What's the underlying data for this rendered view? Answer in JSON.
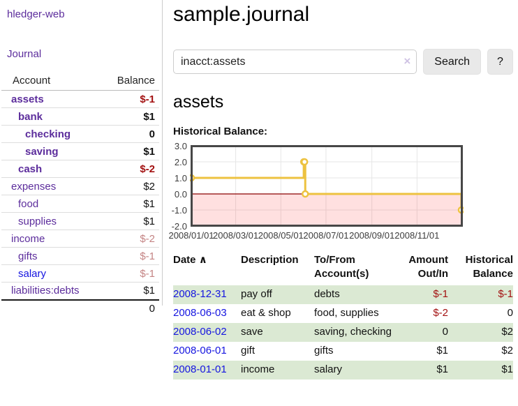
{
  "app": {
    "title": "hledger-web"
  },
  "sidebar": {
    "nav_journal": "Journal",
    "accounts_table": {
      "header_account": "Account",
      "header_balance": "Balance",
      "rows": [
        {
          "name": "assets",
          "depth": 1,
          "balance": "$-1",
          "current": true,
          "balance_tone": "neg-strong",
          "link_style": "purple"
        },
        {
          "name": "bank",
          "depth": 2,
          "balance": "$1",
          "current": true,
          "balance_tone": "pos",
          "link_style": "purple"
        },
        {
          "name": "checking",
          "depth": 3,
          "balance": "0",
          "current": true,
          "balance_tone": "pos",
          "link_style": "purple"
        },
        {
          "name": "saving",
          "depth": 3,
          "balance": "$1",
          "current": true,
          "balance_tone": "pos",
          "link_style": "purple"
        },
        {
          "name": "cash",
          "depth": 2,
          "balance": "$-2",
          "current": true,
          "balance_tone": "neg-strong",
          "link_style": "purple"
        },
        {
          "name": "expenses",
          "depth": 1,
          "balance": "$2",
          "current": false,
          "balance_tone": "pos",
          "link_style": "purple"
        },
        {
          "name": "food",
          "depth": 2,
          "balance": "$1",
          "current": false,
          "balance_tone": "pos",
          "link_style": "purple"
        },
        {
          "name": "supplies",
          "depth": 2,
          "balance": "$1",
          "current": false,
          "balance_tone": "pos",
          "link_style": "purple"
        },
        {
          "name": "income",
          "depth": 1,
          "balance": "$-2",
          "current": false,
          "balance_tone": "neg-muted",
          "link_style": "purple"
        },
        {
          "name": "gifts",
          "depth": 2,
          "balance": "$-1",
          "current": false,
          "balance_tone": "neg-muted",
          "link_style": "purple"
        },
        {
          "name": "salary",
          "depth": 2,
          "balance": "$-1",
          "current": false,
          "balance_tone": "neg-muted",
          "link_style": "blue"
        },
        {
          "name": "liabilities:debts",
          "depth": 1,
          "balance": "$1",
          "current": false,
          "balance_tone": "pos",
          "link_style": "purple"
        }
      ],
      "total": "0"
    }
  },
  "main": {
    "title": "sample.journal",
    "search": {
      "value": "inacct:assets",
      "clear_glyph": "×",
      "button_label": "Search",
      "help_label": "?"
    },
    "account_heading": "assets",
    "chart_label": "Historical Balance:"
  },
  "chart_data": {
    "type": "line",
    "step": true,
    "title": "Historical Balance",
    "series": [
      {
        "name": "$",
        "color": "#edc240",
        "points": [
          {
            "date": "2008-01-01",
            "value": 1
          },
          {
            "date": "2008-06-01",
            "value": 2
          },
          {
            "date": "2008-06-02",
            "value": 2
          },
          {
            "date": "2008-06-03",
            "value": 0
          },
          {
            "date": "2008-12-31",
            "value": -1
          }
        ]
      }
    ],
    "xlim": [
      "2008-01-01",
      "2009-01-01"
    ],
    "ylim": [
      -2,
      3
    ],
    "yticks": [
      "3.0",
      "2.0",
      "1.0",
      "0.0",
      "-1.0",
      "-2.0"
    ],
    "xticks": [
      {
        "label": "2008/01/01",
        "date": "2008-01-01"
      },
      {
        "label": "2008/03/01",
        "date": "2008-03-01"
      },
      {
        "label": "2008/05/01",
        "date": "2008-05-01"
      },
      {
        "label": "2008/07/01",
        "date": "2008-07-01"
      },
      {
        "label": "2008/09/01",
        "date": "2008-09-01"
      },
      {
        "label": "2008/11/01",
        "date": "2008-11-01"
      }
    ],
    "grid": true,
    "legend_position": "top-right",
    "legend_label": "$",
    "zero_line_color": "#8b0000",
    "negative_region_fill": "rgba(255,0,0,0.12)"
  },
  "register_table": {
    "headers": [
      {
        "label": "Date",
        "sort_indicator": "∧"
      },
      {
        "label": "Description"
      },
      {
        "label": "To/From Account(s)"
      },
      {
        "label": "Amount Out/In",
        "align": "right"
      },
      {
        "label": "Historical Balance",
        "align": "right"
      }
    ],
    "rows": [
      {
        "date": "2008-12-31",
        "description": "pay off",
        "accounts": [
          "debts"
        ],
        "amount": "$-1",
        "amount_tone": "neg",
        "balance": "$-1",
        "balance_tone": "neg",
        "highlight": true
      },
      {
        "date": "2008-06-03",
        "description": "eat & shop",
        "accounts": [
          "food",
          "supplies"
        ],
        "amount": "$-2",
        "amount_tone": "neg",
        "balance": "0",
        "balance_tone": "pos",
        "highlight": false
      },
      {
        "date": "2008-06-02",
        "description": "save",
        "accounts": [
          "saving",
          "checking"
        ],
        "amount": "0",
        "amount_tone": "pos",
        "balance": "$2",
        "balance_tone": "pos",
        "highlight": true
      },
      {
        "date": "2008-06-01",
        "description": "gift",
        "accounts": [
          "gifts"
        ],
        "amount": "$1",
        "amount_tone": "pos",
        "balance": "$2",
        "balance_tone": "pos",
        "highlight": false
      },
      {
        "date": "2008-01-01",
        "description": "income",
        "accounts": [
          "salary"
        ],
        "amount": "$1",
        "amount_tone": "pos",
        "balance": "$1",
        "balance_tone": "pos",
        "highlight": true
      }
    ]
  }
}
